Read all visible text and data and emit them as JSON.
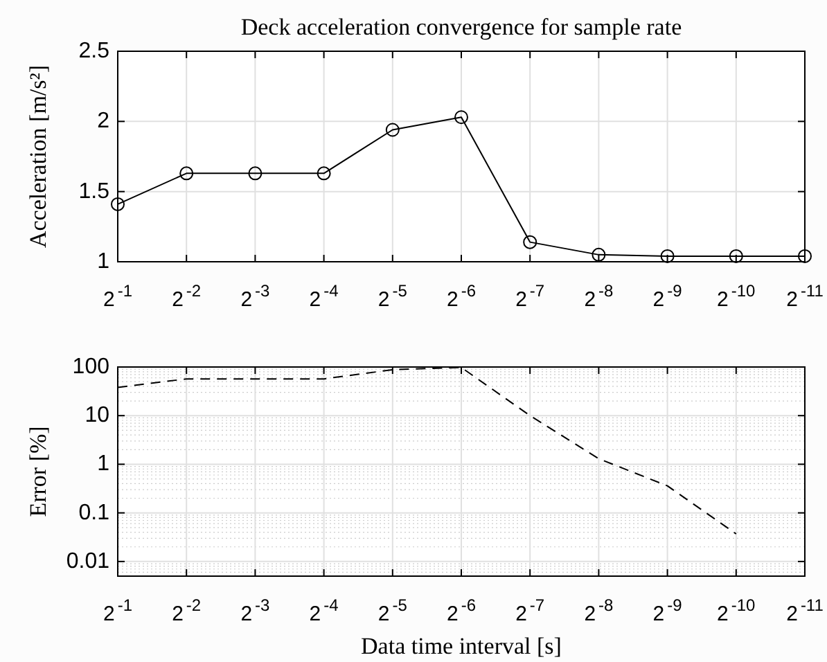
{
  "chart_data": [
    {
      "type": "line",
      "title": "Deck acceleration convergence for sample rate",
      "ylabel": "Acceleration [m/s²]",
      "categories": [
        "2$^{-1}$",
        "2$^{-2}$",
        "2$^{-3}$",
        "2$^{-4}$",
        "2$^{-5}$",
        "2$^{-6}$",
        "2$^{-7}$",
        "2$^{-8}$",
        "2$^{-9}$",
        "2$^{-10}$",
        "2$^{-11}$"
      ],
      "series": [
        {
          "color": "#000000",
          "values": [
            1.41,
            1.63,
            1.63,
            1.63,
            1.94,
            2.03,
            1.14,
            1.05,
            1.04,
            1.04,
            1.04
          ]
        }
      ],
      "ylim": [
        1,
        2.5
      ],
      "yticks": [
        1,
        1.5,
        2,
        2.5
      ],
      "grid": true,
      "marker": "circle",
      "line_style": "solid"
    },
    {
      "type": "line",
      "xlabel": "Data time interval [s]",
      "ylabel": "Error [%]",
      "categories": [
        "2$^{-1}$",
        "2$^{-2}$",
        "2$^{-3}$",
        "2$^{-4}$",
        "2$^{-5}$",
        "2$^{-6}$",
        "2$^{-7}$",
        "2$^{-8}$",
        "2$^{-9}$",
        "2$^{-10}$",
        "2$^{-11}$"
      ],
      "series": [
        {
          "color": "#000000",
          "values": [
            38,
            57,
            57,
            57,
            88,
            98,
            10,
            1.3,
            0.36,
            0.037,
            null
          ]
        }
      ],
      "ylim": [
        0.005,
        100
      ],
      "yticks": [
        0.01,
        0.1,
        1,
        10,
        100
      ],
      "log": "y",
      "grid": true,
      "marker": "none",
      "line_style": "dashed"
    }
  ]
}
